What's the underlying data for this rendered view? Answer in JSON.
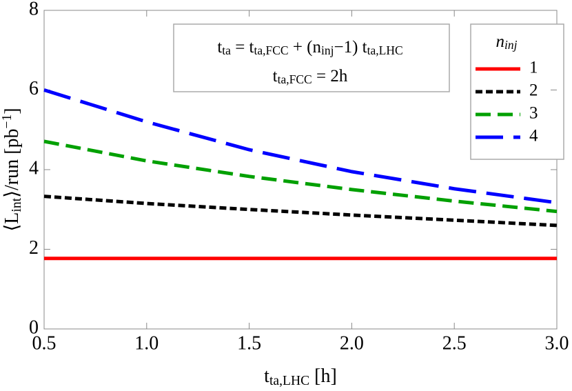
{
  "chart_data": {
    "type": "line",
    "x": [
      0.5,
      1.0,
      1.5,
      2.0,
      2.5,
      3.0
    ],
    "series": [
      {
        "name": "1",
        "color": "#ff0000",
        "dash": "solid",
        "values": [
          1.77,
          1.77,
          1.77,
          1.77,
          1.77,
          1.77
        ]
      },
      {
        "name": "2",
        "color": "#000000",
        "dash": "short",
        "values": [
          3.33,
          3.15,
          3.0,
          2.86,
          2.73,
          2.6
        ]
      },
      {
        "name": "3",
        "color": "#00a000",
        "dash": "medium",
        "values": [
          4.71,
          4.22,
          3.83,
          3.5,
          3.21,
          2.95
        ]
      },
      {
        "name": "4",
        "color": "#0000ff",
        "dash": "long",
        "values": [
          6.0,
          5.2,
          4.5,
          3.95,
          3.52,
          3.17
        ]
      }
    ],
    "xlim": [
      0.5,
      3.0
    ],
    "xticks": [
      0.5,
      {
        "value": 1.0,
        "label": "1.0"
      },
      1.5,
      {
        "value": 2.0,
        "label": "2.0"
      },
      2.5,
      {
        "value": 3.0,
        "label": "3.0"
      }
    ],
    "ylim": [
      0,
      8
    ],
    "yticks": [
      0,
      2,
      4,
      6,
      8
    ],
    "x_label": [
      {
        "text": "t"
      },
      {
        "sub": "ta,LHC"
      },
      {
        "text": " [h]"
      }
    ],
    "y_label": [
      {
        "text": "⟨L"
      },
      {
        "sub": "int"
      },
      {
        "text": "⟩/run [pb"
      },
      {
        "sup": "−1"
      },
      {
        "text": "]"
      }
    ],
    "annotation": [
      [
        {
          "text": "t"
        },
        {
          "sub": "ta"
        },
        {
          "text": " = t"
        },
        {
          "sub": "ta,FCC"
        },
        {
          "text": " + (n"
        },
        {
          "sub": "inj"
        },
        {
          "text": "−1) t"
        },
        {
          "sub": "ta,LHC"
        }
      ],
      [
        {
          "text": "t"
        },
        {
          "sub": "ta,FCC"
        },
        {
          "text": " = 2h"
        }
      ]
    ],
    "legend_title": [
      {
        "text": "n"
      },
      {
        "sub": "inj"
      }
    ],
    "legend": "top-right"
  }
}
